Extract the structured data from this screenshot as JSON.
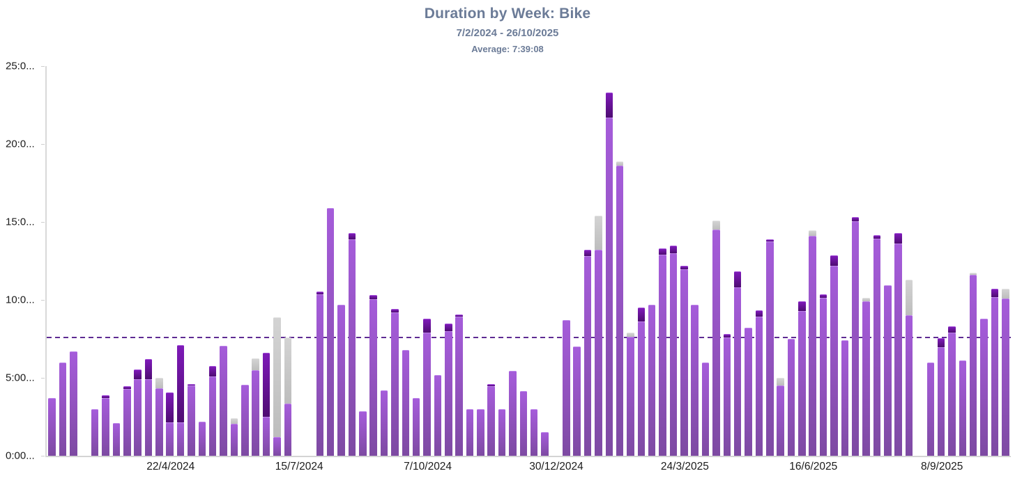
{
  "header": {
    "title": "Duration by Week: Bike",
    "subtitle": "7/2/2024 - 26/10/2025",
    "average_label": "Average: 7:39:08"
  },
  "colors": {
    "header_text": "#6b7b97",
    "axis_line": "#d8d8d8",
    "tick_text": "#1b1b1b",
    "average_dash": "#5e2b93",
    "bar_purple": "#9a53c8",
    "bar_dark_purple": "#5f1090",
    "bar_gray": "#c6c6c6"
  },
  "chart_data": {
    "type": "bar",
    "stacked": true,
    "unit": "hours",
    "title": "Duration by Week: Bike",
    "subtitle": "7/2/2024 - 26/10/2025",
    "average_annotation": {
      "label": "Average: 7:39:08",
      "value_hours": 7.652
    },
    "ylim": [
      0,
      25
    ],
    "grid": false,
    "legend": false,
    "num_week_slots": 90,
    "y_axis_labels": [
      {
        "text": "25:0...",
        "hours": 25
      },
      {
        "text": "20:0...",
        "hours": 20
      },
      {
        "text": "15:0...",
        "hours": 15
      },
      {
        "text": "10:0...",
        "hours": 10
      },
      {
        "text": "5:00...",
        "hours": 5
      },
      {
        "text": "0:00...",
        "hours": 0
      }
    ],
    "x_axis_ticks": [
      {
        "text": "22/4/2024",
        "week_index": 11
      },
      {
        "text": "15/7/2024",
        "week_index": 23
      },
      {
        "text": "7/10/2024",
        "week_index": 35
      },
      {
        "text": "30/12/2024",
        "week_index": 47
      },
      {
        "text": "24/3/2025",
        "week_index": 59
      },
      {
        "text": "16/6/2025",
        "week_index": 71
      },
      {
        "text": "8/9/2025",
        "week_index": 83
      }
    ],
    "series": [
      "purple",
      "dark_purple",
      "gray"
    ],
    "bars_format": [
      "week_index",
      "purple_hours",
      "dark_purple_hours",
      "gray_hours"
    ],
    "bars": [
      [
        0,
        3.7,
        0,
        0
      ],
      [
        1,
        6.0,
        0,
        0
      ],
      [
        2,
        6.7,
        0,
        0
      ],
      [
        4,
        3.0,
        0,
        0
      ],
      [
        5,
        3.7,
        0.2,
        0
      ],
      [
        6,
        2.1,
        0,
        0
      ],
      [
        7,
        4.3,
        0.15,
        0
      ],
      [
        8,
        4.9,
        0.65,
        0
      ],
      [
        9,
        4.9,
        1.3,
        0
      ],
      [
        10,
        4.35,
        0,
        0.65
      ],
      [
        11,
        2.15,
        1.9,
        0
      ],
      [
        12,
        2.15,
        4.95,
        0
      ],
      [
        13,
        4.5,
        0.1,
        0
      ],
      [
        14,
        2.2,
        0,
        0
      ],
      [
        15,
        5.1,
        0.65,
        0
      ],
      [
        16,
        7.05,
        0,
        0
      ],
      [
        17,
        2.05,
        0,
        0.35
      ],
      [
        18,
        4.55,
        0,
        0
      ],
      [
        19,
        5.5,
        0,
        0.75
      ],
      [
        20,
        2.5,
        4.1,
        0
      ],
      [
        21,
        1.2,
        0,
        7.7
      ],
      [
        22,
        3.35,
        0,
        4.25
      ],
      [
        25,
        10.35,
        0.2,
        0
      ],
      [
        26,
        15.9,
        0,
        0
      ],
      [
        27,
        9.7,
        0,
        0
      ],
      [
        28,
        13.9,
        0.4,
        0
      ],
      [
        29,
        2.85,
        0,
        0
      ],
      [
        30,
        10.05,
        0.25,
        0
      ],
      [
        31,
        4.2,
        0,
        0
      ],
      [
        32,
        9.2,
        0.2,
        0
      ],
      [
        33,
        6.8,
        0,
        0
      ],
      [
        34,
        3.7,
        0,
        0
      ],
      [
        35,
        7.9,
        0.9,
        0
      ],
      [
        36,
        5.2,
        0,
        0
      ],
      [
        37,
        8.0,
        0.5,
        0
      ],
      [
        38,
        8.95,
        0.1,
        0
      ],
      [
        39,
        3.0,
        0,
        0
      ],
      [
        40,
        3.0,
        0,
        0
      ],
      [
        41,
        4.45,
        0.15,
        0
      ],
      [
        42,
        3.0,
        0,
        0
      ],
      [
        43,
        5.45,
        0,
        0
      ],
      [
        44,
        4.15,
        0,
        0
      ],
      [
        45,
        3.0,
        0,
        0
      ],
      [
        46,
        1.5,
        0,
        0
      ],
      [
        48,
        8.7,
        0,
        0
      ],
      [
        49,
        7.0,
        0,
        0
      ],
      [
        50,
        12.8,
        0.4,
        0
      ],
      [
        51,
        13.2,
        0,
        2.2
      ],
      [
        52,
        21.7,
        1.6,
        0
      ],
      [
        53,
        18.6,
        0,
        0.3
      ],
      [
        54,
        7.65,
        0,
        0.25
      ],
      [
        55,
        8.6,
        0.9,
        0
      ],
      [
        56,
        9.7,
        0,
        0
      ],
      [
        57,
        12.9,
        0.4,
        0
      ],
      [
        58,
        13.0,
        0.5,
        0
      ],
      [
        59,
        11.95,
        0.25,
        0
      ],
      [
        60,
        9.7,
        0,
        0
      ],
      [
        61,
        6.0,
        0,
        0
      ],
      [
        62,
        14.5,
        0,
        0.6
      ],
      [
        63,
        7.6,
        0.2,
        0
      ],
      [
        64,
        10.8,
        1.05,
        0
      ],
      [
        65,
        8.2,
        0,
        0
      ],
      [
        66,
        8.95,
        0.4,
        0
      ],
      [
        67,
        13.75,
        0.15,
        0
      ],
      [
        68,
        4.5,
        0,
        0.5
      ],
      [
        69,
        7.5,
        0,
        0
      ],
      [
        70,
        9.3,
        0.6,
        0
      ],
      [
        71,
        14.1,
        0,
        0.35
      ],
      [
        72,
        10.15,
        0.2,
        0
      ],
      [
        73,
        12.2,
        0.65,
        0
      ],
      [
        74,
        7.4,
        0,
        0
      ],
      [
        75,
        15.05,
        0.25,
        0
      ],
      [
        76,
        9.9,
        0,
        0.25
      ],
      [
        77,
        13.95,
        0.2,
        0
      ],
      [
        78,
        10.95,
        0,
        0
      ],
      [
        79,
        13.6,
        0.7,
        0
      ],
      [
        80,
        9.0,
        0,
        2.3
      ],
      [
        82,
        6.0,
        0,
        0
      ],
      [
        83,
        6.95,
        0.6,
        0
      ],
      [
        84,
        7.9,
        0.4,
        0
      ],
      [
        85,
        6.1,
        0,
        0
      ],
      [
        86,
        11.6,
        0,
        0.15
      ],
      [
        87,
        8.8,
        0,
        0
      ],
      [
        88,
        10.2,
        0.5,
        0
      ],
      [
        89,
        10.1,
        0,
        0.6
      ]
    ]
  }
}
